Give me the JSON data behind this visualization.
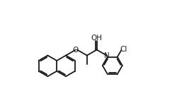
{
  "bg_color": "#ffffff",
  "line_color": "#1a1a1a",
  "line_width": 1.3,
  "font_size": 7.5,
  "figsize": [
    2.51,
    1.53
  ],
  "dpi": 100,
  "xlim": [
    0.0,
    1.0
  ],
  "ylim": [
    0.05,
    0.95
  ]
}
